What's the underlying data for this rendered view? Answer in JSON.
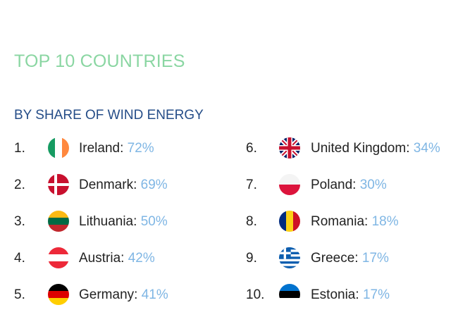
{
  "header": {
    "title": "TOP 10 COUNTRIES",
    "subtitle": "BY SHARE OF WIND ENERGY"
  },
  "left_column": [
    {
      "rank": "1.",
      "country": "Ireland:",
      "share": "72%",
      "flag_icon": "ireland-flag-icon"
    },
    {
      "rank": "2.",
      "country": "Denmark:",
      "share": "69%",
      "flag_icon": "denmark-flag-icon"
    },
    {
      "rank": "3.",
      "country": "Lithuania:",
      "share": "50%",
      "flag_icon": "lithuania-flag-icon"
    },
    {
      "rank": "4.",
      "country": "Austria:",
      "share": "42%",
      "flag_icon": "austria-flag-icon"
    },
    {
      "rank": "5.",
      "country": "Germany:",
      "share": "41%",
      "flag_icon": "germany-flag-icon"
    }
  ],
  "right_column": [
    {
      "rank": "6.",
      "country": "United Kingdom:",
      "share": "34%",
      "flag_icon": "united-kingdom-flag-icon"
    },
    {
      "rank": "7.",
      "country": "Poland:",
      "share": "30%",
      "flag_icon": "poland-flag-icon"
    },
    {
      "rank": "8.",
      "country": "Romania:",
      "share": "18%",
      "flag_icon": "romania-flag-icon"
    },
    {
      "rank": "9.",
      "country": "Greece:",
      "share": "17%",
      "flag_icon": "greece-flag-icon"
    },
    {
      "rank": "10.",
      "country": "Estonia:",
      "share": "17%",
      "flag_icon": "estonia-flag-icon"
    }
  ],
  "colors": {
    "title": "#8ad6a2",
    "subtitle": "#254d88",
    "share_value": "#7fb6e4",
    "text": "#222222"
  }
}
